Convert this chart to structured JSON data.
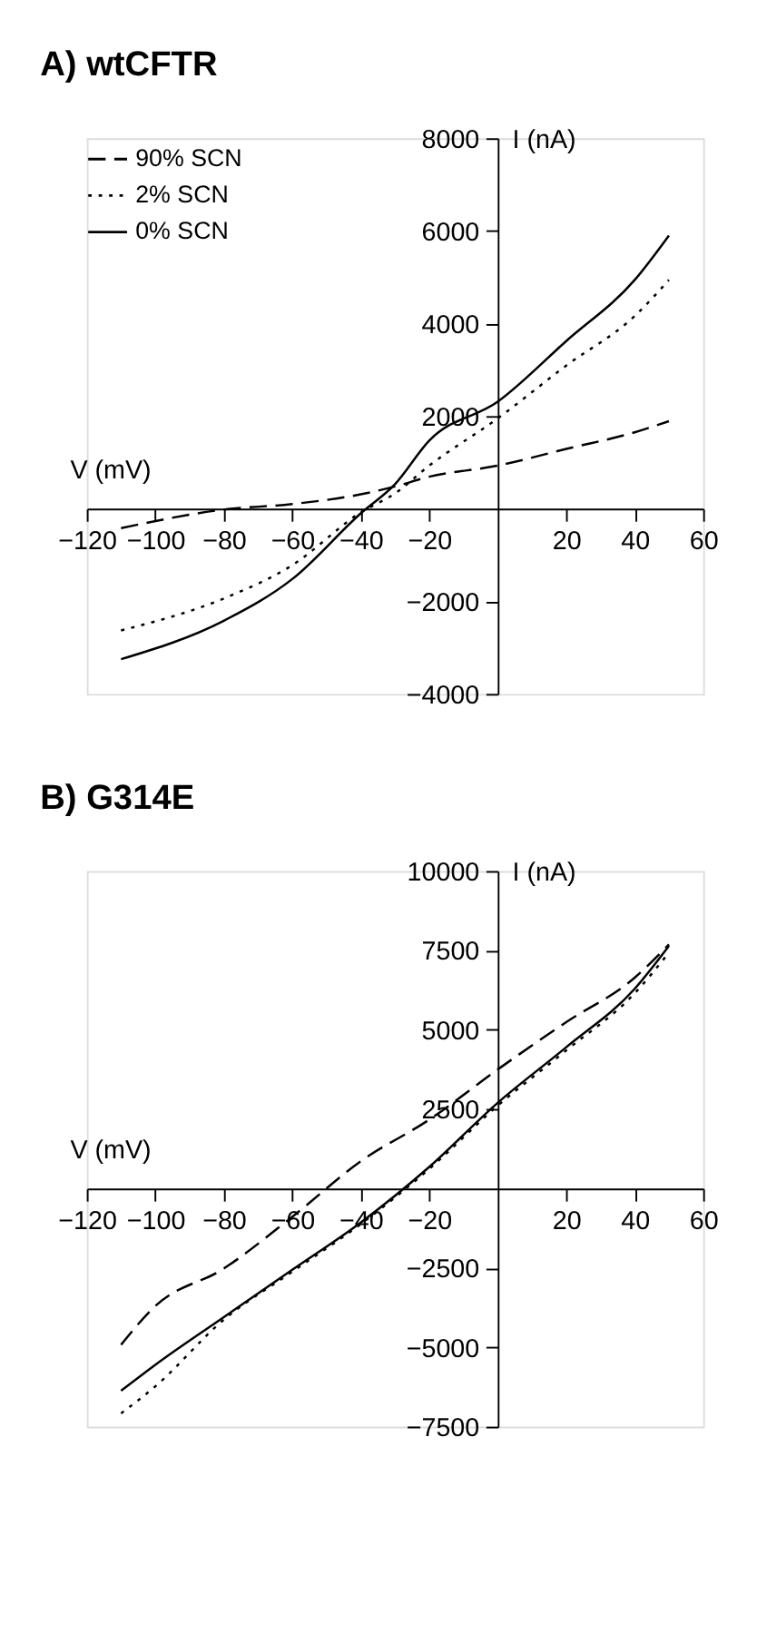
{
  "chart_data": [
    {
      "type": "line",
      "title": "A) wtCFTR",
      "xlabel": "V (mV)",
      "ylabel": "I (nA)",
      "xlim": [
        -120,
        60
      ],
      "ylim": [
        -4000,
        8000
      ],
      "xticks": [
        -120,
        -100,
        -80,
        -60,
        -40,
        -20,
        20,
        40,
        60
      ],
      "yticks": [
        -4000,
        -2000,
        2000,
        4000,
        6000,
        8000
      ],
      "grid": false,
      "legend": "top left",
      "marker": "none",
      "x": [
        -110,
        -80,
        -60,
        -40,
        -30,
        -20,
        0,
        20,
        40,
        50
      ],
      "series": [
        {
          "name": "90% SCN",
          "color": "#000000",
          "line_style": "dashed",
          "values": [
            -420,
            -20,
            100,
            310,
            480,
            690,
            930,
            1290,
            1650,
            1890
          ]
        },
        {
          "name": "2% SCN",
          "color": "#000000",
          "line_style": "dotted",
          "values": [
            -2630,
            -1940,
            -1220,
            -80,
            330,
            930,
            1950,
            3090,
            4160,
            4940
          ]
        },
        {
          "name": "0% SCN",
          "color": "#000000",
          "line_style": "solid",
          "values": [
            -3250,
            -2420,
            -1520,
            -100,
            530,
            1470,
            2310,
            3620,
            4940,
            5900
          ]
        }
      ]
    },
    {
      "type": "line",
      "title": "B) G314E",
      "xlabel": "V (mV)",
      "ylabel": "I (nA)",
      "xlim": [
        -120,
        60
      ],
      "ylim": [
        -7500,
        10000
      ],
      "xticks": [
        -120,
        -100,
        -80,
        -60,
        -40,
        -20,
        20,
        40,
        60
      ],
      "yticks": [
        -7500,
        -5000,
        -2500,
        2500,
        5000,
        7500,
        10000
      ],
      "grid": false,
      "legend": "top left",
      "marker": "none",
      "x": [
        -110,
        -100,
        -80,
        -60,
        -40,
        -20,
        0,
        20,
        40,
        50
      ],
      "series": [
        {
          "name": "0% SCN",
          "color": "#000000",
          "line_style": "solid",
          "values": [
            -6370,
            -5550,
            -4050,
            -2560,
            -1070,
            680,
            2700,
            4450,
            6290,
            7640
          ]
        },
        {
          "name": "2% SCN",
          "color": "#000000",
          "line_style": "dotted",
          "values": [
            -7080,
            -6230,
            -4130,
            -2620,
            -1120,
            620,
            2610,
            4350,
            6150,
            7430
          ]
        },
        {
          "name": "90% SCN",
          "color": "#000000",
          "line_style": "dashed",
          "values": [
            -4920,
            -3700,
            -2520,
            -890,
            860,
            2170,
            3750,
            5240,
            6640,
            7690
          ]
        }
      ]
    }
  ]
}
